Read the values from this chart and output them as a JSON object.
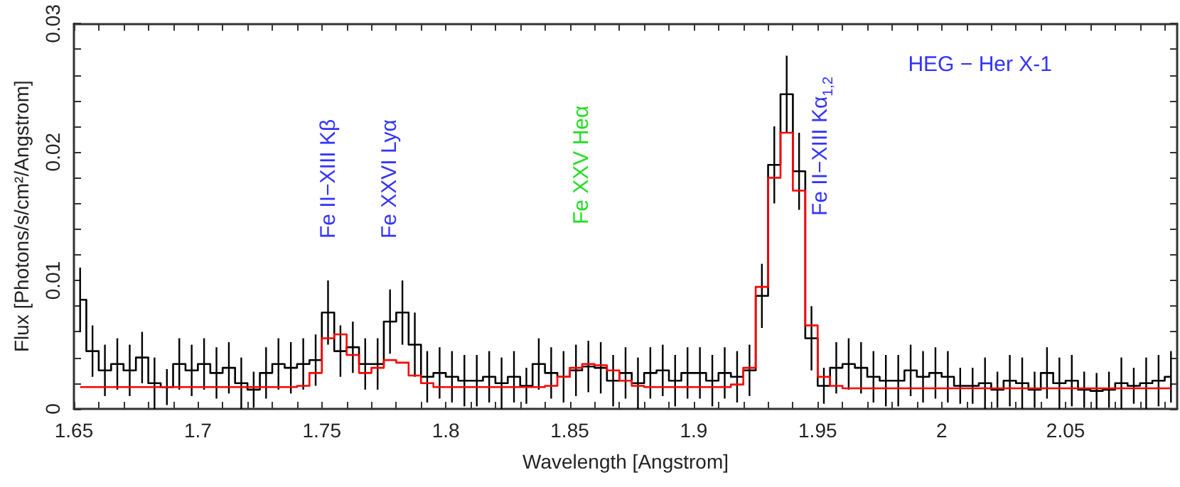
{
  "chart_data": {
    "type": "step",
    "xlabel": "Wavelength [Angstrom]",
    "ylabel": "Flux [Photons/s/cm²/Angstrom]",
    "x": [
      1.6525,
      1.6575,
      1.6625,
      1.6675,
      1.6725,
      1.6775,
      1.6825,
      1.6875,
      1.6925,
      1.6975,
      1.7025,
      1.7075,
      1.7125,
      1.7175,
      1.7225,
      1.7275,
      1.7325,
      1.7375,
      1.7425,
      1.7475,
      1.7525,
      1.7575,
      1.7625,
      1.7675,
      1.7725,
      1.7775,
      1.7825,
      1.7875,
      1.7925,
      1.7975,
      1.8025,
      1.8075,
      1.8125,
      1.8175,
      1.8225,
      1.8275,
      1.8325,
      1.8375,
      1.8425,
      1.8475,
      1.8525,
      1.8575,
      1.8625,
      1.8675,
      1.8725,
      1.8775,
      1.8825,
      1.8875,
      1.8925,
      1.8975,
      1.9025,
      1.9075,
      1.9125,
      1.9175,
      1.9225,
      1.9275,
      1.9325,
      1.9375,
      1.9425,
      1.9475,
      1.9525,
      1.9575,
      1.9625,
      1.9675,
      1.9725,
      1.9775,
      1.9825,
      1.9875,
      1.9925,
      1.9975,
      2.0025,
      2.0075,
      2.0125,
      2.0175,
      2.0225,
      2.0275,
      2.0325,
      2.0375,
      2.0425,
      2.0475,
      2.0525,
      2.0575,
      2.0625,
      2.0675,
      2.0725,
      2.0775,
      2.0825,
      2.0875,
      2.0925
    ],
    "series": [
      {
        "color": "#000000",
        "values": [
          0.0085,
          0.0045,
          0.003,
          0.0035,
          0.003,
          0.004,
          0.002,
          0.0017,
          0.0035,
          0.003,
          0.0035,
          0.0028,
          0.0032,
          0.002,
          0.0015,
          0.0028,
          0.0035,
          0.0032,
          0.0035,
          0.0038,
          0.0075,
          0.0045,
          0.0048,
          0.0035,
          0.0035,
          0.0068,
          0.0075,
          0.005,
          0.0025,
          0.0028,
          0.0025,
          0.0022,
          0.0022,
          0.0025,
          0.002,
          0.0025,
          0.0018,
          0.0035,
          0.0028,
          0.0025,
          0.003,
          0.0033,
          0.0032,
          0.0022,
          0.0028,
          0.002,
          0.0028,
          0.003,
          0.0022,
          0.0028,
          0.0028,
          0.0022,
          0.0028,
          0.0025,
          0.003,
          0.0088,
          0.019,
          0.0245,
          0.0185,
          0.0055,
          0.0018,
          0.0032,
          0.0035,
          0.0032,
          0.0025,
          0.0022,
          0.0022,
          0.003,
          0.0025,
          0.0028,
          0.0025,
          0.0018,
          0.0018,
          0.002,
          0.0015,
          0.0022,
          0.002,
          0.0015,
          0.0028,
          0.002,
          0.0022,
          0.0015,
          0.0014,
          0.0015,
          0.002,
          0.0018,
          0.002,
          0.0022,
          0.0025
        ],
        "errors": [
          0.0025,
          0.002,
          0.002,
          0.002,
          0.002,
          0.002,
          0.002,
          0.0014,
          0.002,
          0.002,
          0.002,
          0.002,
          0.002,
          0.002,
          0.0014,
          0.002,
          0.002,
          0.002,
          0.002,
          0.002,
          0.0025,
          0.002,
          0.002,
          0.002,
          0.002,
          0.0025,
          0.0025,
          0.0025,
          0.002,
          0.002,
          0.002,
          0.002,
          0.002,
          0.002,
          0.002,
          0.002,
          0.0014,
          0.002,
          0.002,
          0.002,
          0.002,
          0.002,
          0.002,
          0.002,
          0.002,
          0.002,
          0.002,
          0.002,
          0.002,
          0.002,
          0.002,
          0.002,
          0.002,
          0.002,
          0.002,
          0.0025,
          0.003,
          0.003,
          0.003,
          0.0025,
          0.0014,
          0.002,
          0.002,
          0.002,
          0.002,
          0.002,
          0.002,
          0.002,
          0.002,
          0.002,
          0.002,
          0.0014,
          0.0014,
          0.002,
          0.0014,
          0.002,
          0.002,
          0.0014,
          0.002,
          0.002,
          0.002,
          0.0014,
          0.0014,
          0.0014,
          0.002,
          0.0014,
          0.002,
          0.002,
          0.002
        ]
      },
      {
        "color": "#ff0000",
        "values": [
          0.0017,
          0.0017,
          0.0017,
          0.0017,
          0.0017,
          0.0017,
          0.0017,
          0.0017,
          0.0017,
          0.0017,
          0.0017,
          0.0017,
          0.0017,
          0.0017,
          0.0017,
          0.0017,
          0.0017,
          0.0017,
          0.0018,
          0.0028,
          0.0055,
          0.0058,
          0.0042,
          0.0028,
          0.0032,
          0.0038,
          0.0036,
          0.0026,
          0.002,
          0.0017,
          0.0017,
          0.0017,
          0.0017,
          0.0017,
          0.0017,
          0.0017,
          0.0017,
          0.0017,
          0.0018,
          0.0025,
          0.0032,
          0.0035,
          0.0034,
          0.003,
          0.0022,
          0.0018,
          0.0017,
          0.0017,
          0.0017,
          0.0017,
          0.0017,
          0.0017,
          0.0017,
          0.0019,
          0.0032,
          0.0095,
          0.018,
          0.0215,
          0.017,
          0.0065,
          0.0025,
          0.0018,
          0.0016,
          0.0016,
          0.0016,
          0.0016,
          0.0016,
          0.0016,
          0.0016,
          0.0016,
          0.0016,
          0.0016,
          0.0016,
          0.0016,
          0.0016,
          0.0016,
          0.0016,
          0.0016,
          0.0016,
          0.0016,
          0.0016,
          0.0016,
          0.0016,
          0.0016,
          0.0016,
          0.0016,
          0.0016,
          0.0016,
          0.0016
        ]
      }
    ],
    "marker": "none",
    "xlim": [
      1.65,
      2.095
    ],
    "xticks": [
      1.65,
      {
        "value": 1.66,
        "label": null
      },
      {
        "value": 1.67,
        "label": null
      },
      {
        "value": 1.68,
        "label": null
      },
      {
        "value": 1.69,
        "label": null
      },
      1.7,
      {
        "value": 1.71,
        "label": null
      },
      {
        "value": 1.72,
        "label": null
      },
      {
        "value": 1.73,
        "label": null
      },
      {
        "value": 1.74,
        "label": null
      },
      1.75,
      {
        "value": 1.76,
        "label": null
      },
      {
        "value": 1.77,
        "label": null
      },
      {
        "value": 1.78,
        "label": null
      },
      {
        "value": 1.79,
        "label": null
      },
      1.8,
      {
        "value": 1.81,
        "label": null
      },
      {
        "value": 1.82,
        "label": null
      },
      {
        "value": 1.83,
        "label": null
      },
      {
        "value": 1.84,
        "label": null
      },
      1.85,
      {
        "value": 1.86,
        "label": null
      },
      {
        "value": 1.87,
        "label": null
      },
      {
        "value": 1.88,
        "label": null
      },
      {
        "value": 1.89,
        "label": null
      },
      1.9,
      {
        "value": 1.91,
        "label": null
      },
      {
        "value": 1.92,
        "label": null
      },
      {
        "value": 1.93,
        "label": null
      },
      {
        "value": 1.94,
        "label": null
      },
      1.95,
      {
        "value": 1.96,
        "label": null
      },
      {
        "value": 1.97,
        "label": null
      },
      {
        "value": 1.98,
        "label": null
      },
      {
        "value": 1.99,
        "label": null
      },
      2,
      {
        "value": 2.01,
        "label": null
      },
      {
        "value": 2.02,
        "label": null
      },
      {
        "value": 2.03,
        "label": null
      },
      {
        "value": 2.04,
        "label": null
      },
      2.05,
      {
        "value": 2.06,
        "label": null
      },
      {
        "value": 2.07,
        "label": null
      },
      {
        "value": 2.08,
        "label": null
      },
      {
        "value": 2.09,
        "label": null
      }
    ],
    "ylim": [
      0,
      0.03
    ],
    "yticks": [
      0,
      {
        "value": 0.002,
        "label": null
      },
      {
        "value": 0.004,
        "label": null
      },
      {
        "value": 0.006,
        "label": null
      },
      {
        "value": 0.008,
        "label": null
      },
      0.01,
      {
        "value": 0.012,
        "label": null
      },
      {
        "value": 0.014,
        "label": null
      },
      {
        "value": 0.016,
        "label": null
      },
      {
        "value": 0.018,
        "label": null
      },
      0.02,
      {
        "value": 0.022,
        "label": null
      },
      {
        "value": 0.024,
        "label": null
      },
      {
        "value": 0.026,
        "label": null
      },
      {
        "value": 0.028,
        "label": null
      },
      0.03
    ],
    "annotations": [
      "Fe II−XIII Kβ",
      "Fe XXVI Lyα",
      "Fe XXV Heα",
      "Fe II−XIII Kα$_{1,2}$",
      "HEG − Her X-1"
    ]
  }
}
